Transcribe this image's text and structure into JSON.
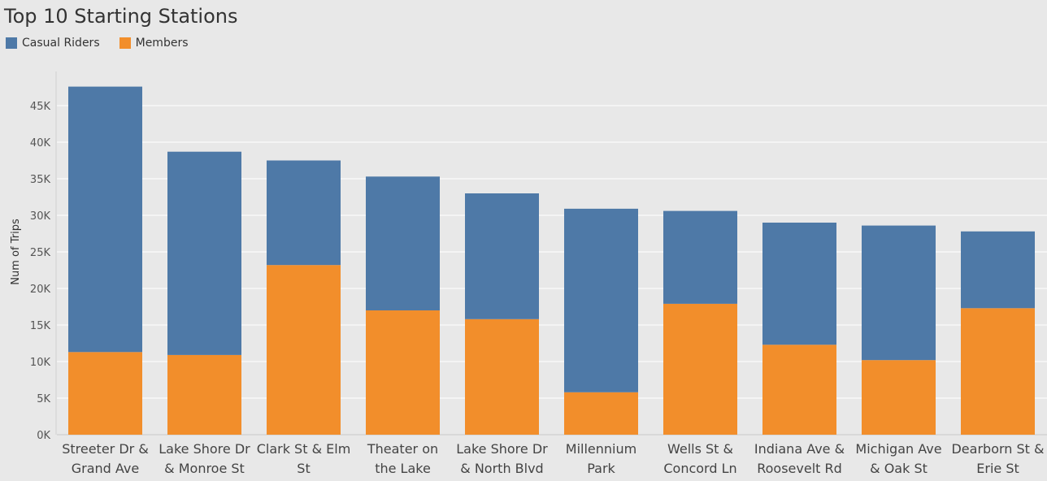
{
  "chart_data": {
    "type": "bar",
    "stacked": true,
    "title": "Top 10 Starting Stations",
    "ylabel": "Num of Trips",
    "xlabel": "",
    "ylim": [
      0,
      50000
    ],
    "yticks": [
      0,
      5000,
      10000,
      15000,
      20000,
      25000,
      30000,
      35000,
      40000,
      45000
    ],
    "ytick_labels": [
      "0K",
      "5K",
      "10K",
      "15K",
      "20K",
      "25K",
      "30K",
      "35K",
      "40K",
      "45K"
    ],
    "grid": true,
    "legend_position": "top-left",
    "categories": [
      [
        "Streeter Dr &",
        "Grand Ave"
      ],
      [
        "Lake Shore Dr",
        "& Monroe St"
      ],
      [
        "Clark St & Elm",
        "St"
      ],
      [
        "Theater on",
        "the Lake"
      ],
      [
        "Lake Shore Dr",
        "& North Blvd"
      ],
      [
        "Millennium",
        "Park"
      ],
      [
        "Wells St &",
        "Concord Ln"
      ],
      [
        "Indiana Ave &",
        "Roosevelt Rd"
      ],
      [
        "Michigan Ave",
        "& Oak St"
      ],
      [
        "Dearborn St &",
        "Erie St"
      ]
    ],
    "series": [
      {
        "name": "Members",
        "color": "#f28e2b",
        "values": [
          11300,
          10900,
          23200,
          17000,
          15800,
          5800,
          17900,
          12300,
          10200,
          17300
        ]
      },
      {
        "name": "Casual Riders",
        "color": "#4e79a7",
        "values": [
          36300,
          27800,
          14300,
          18300,
          17200,
          25100,
          12700,
          16700,
          18400,
          10500
        ]
      }
    ]
  },
  "legend": {
    "items": [
      {
        "label": "Casual Riders",
        "color": "#4e79a7"
      },
      {
        "label": "Members",
        "color": "#f28e2b"
      }
    ]
  }
}
